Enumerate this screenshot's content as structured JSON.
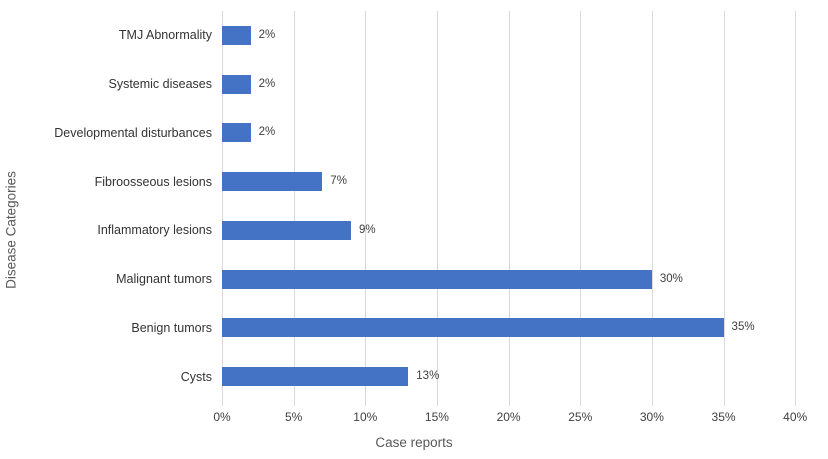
{
  "chart_data": {
    "type": "bar",
    "orientation": "horizontal",
    "title": "",
    "xlabel": "Case reports",
    "ylabel": "Disease Categories",
    "categories": [
      "TMJ Abnormality",
      "Systemic diseases",
      "Developmental disturbances",
      "Fibroosseous lesions",
      "Inflammatory lesions",
      "Malignant tumors",
      "Benign tumors",
      "Cysts"
    ],
    "values": [
      2,
      2,
      2,
      7,
      9,
      30,
      35,
      13
    ],
    "data_labels": [
      "2%",
      "2%",
      "2%",
      "7%",
      "9%",
      "30%",
      "35%",
      "13%"
    ],
    "xlim": [
      0,
      40
    ],
    "x_tick_values": [
      0,
      5,
      10,
      15,
      20,
      25,
      30,
      35,
      40
    ],
    "x_tick_labels": [
      "0%",
      "5%",
      "10%",
      "15%",
      "20%",
      "25%",
      "30%",
      "35%",
      "40%"
    ],
    "grid": true,
    "legend": "none",
    "bar_color": "#4472C4",
    "gridline_color": "#D9D9D9",
    "value_label_color": "#404040",
    "axis_title_color": "#595959"
  }
}
